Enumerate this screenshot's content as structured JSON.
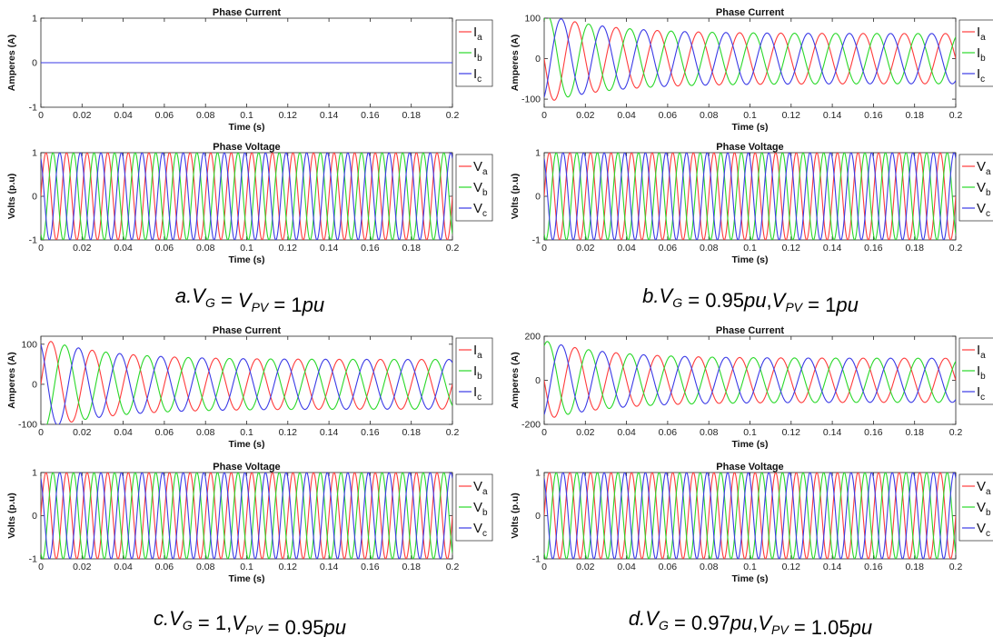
{
  "panels": [
    {
      "id": "a",
      "caption": {
        "prefix": "a.",
        "vg_value": "V_PV",
        "vpv_value": "1pu",
        "separator": " = "
      },
      "caption_text": "a.V_G = V_PV = 1pu"
    },
    {
      "id": "b",
      "caption_text": "b.V_G = 0.95pu,V_PV = 1pu"
    },
    {
      "id": "c",
      "caption_text": "c.V_G = 1,V_PV = 0.95pu"
    },
    {
      "id": "d",
      "caption_text": "d.V_G = 0.97pu,V_PV = 1.05pu"
    }
  ],
  "chart_data": [
    {
      "panel": "a",
      "type": "line",
      "title": "Phase Current",
      "xlabel": "Time (s)",
      "ylabel": "Amperes (A)",
      "xlim": [
        0,
        0.2
      ],
      "ylim": [
        -1,
        1
      ],
      "yticks": [
        -1,
        0,
        1
      ],
      "xticks": [
        0,
        0.02,
        0.04,
        0.06,
        0.08,
        0.1,
        0.12,
        0.14,
        0.16,
        0.18,
        0.2
      ],
      "grid": false,
      "legend": "outside-right",
      "frequency_hz": 50,
      "steady_amplitude": 0,
      "initial_amplitude": 0,
      "decay_time_s": 0.02,
      "series": [
        {
          "name": "I",
          "sub": "a",
          "color": "#ff3b3b",
          "phase_deg": 0
        },
        {
          "name": "I",
          "sub": "b",
          "color": "#29d829",
          "phase_deg": -120
        },
        {
          "name": "I",
          "sub": "c",
          "color": "#3a3ae6",
          "phase_deg": 120
        }
      ]
    },
    {
      "panel": "a",
      "type": "line",
      "title": "Phase Voltage",
      "xlabel": "Time (s)",
      "ylabel": "Volts (p.u)",
      "xlim": [
        0,
        0.2
      ],
      "ylim": [
        -1,
        1
      ],
      "yticks": [
        -1,
        0,
        1
      ],
      "xticks": [
        0,
        0.02,
        0.04,
        0.06,
        0.08,
        0.1,
        0.12,
        0.14,
        0.16,
        0.18,
        0.2
      ],
      "grid": false,
      "legend": "outside-right",
      "frequency_hz": 100,
      "amplitude": 1,
      "series": [
        {
          "name": "V",
          "sub": "a",
          "color": "#ff3b3b",
          "phase_deg": 0
        },
        {
          "name": "V",
          "sub": "b",
          "color": "#29d829",
          "phase_deg": -120
        },
        {
          "name": "V",
          "sub": "c",
          "color": "#3a3ae6",
          "phase_deg": 120
        }
      ]
    },
    {
      "panel": "b",
      "type": "line",
      "title": "Phase Current",
      "xlabel": "Time (s)",
      "ylabel": "Amperes (A)",
      "xlim": [
        0,
        0.2
      ],
      "ylim": [
        -120,
        100
      ],
      "yticks": [
        -100,
        0,
        100
      ],
      "xticks": [
        0,
        0.02,
        0.04,
        0.06,
        0.08,
        0.1,
        0.12,
        0.14,
        0.16,
        0.18,
        0.2
      ],
      "grid": false,
      "legend": "outside-right",
      "frequency_hz": 50,
      "steady_amplitude": 62,
      "initial_amplitude": 110,
      "decay_time_s": 0.03,
      "series": [
        {
          "name": "I",
          "sub": "a",
          "color": "#ff3b3b",
          "phase_deg": 180
        },
        {
          "name": "I",
          "sub": "b",
          "color": "#29d829",
          "phase_deg": 60
        },
        {
          "name": "I",
          "sub": "c",
          "color": "#3a3ae6",
          "phase_deg": -60
        }
      ]
    },
    {
      "panel": "b",
      "type": "line",
      "title": "Phase Voltage",
      "xlabel": "Time (s)",
      "ylabel": "Volts (p.u)",
      "xlim": [
        0,
        0.2
      ],
      "ylim": [
        -1,
        1
      ],
      "yticks": [
        -1,
        0,
        1
      ],
      "xticks": [
        0,
        0.02,
        0.04,
        0.06,
        0.08,
        0.1,
        0.12,
        0.14,
        0.16,
        0.18,
        0.2
      ],
      "grid": false,
      "legend": "outside-right",
      "frequency_hz": 100,
      "amplitude": 1,
      "series": [
        {
          "name": "V",
          "sub": "a",
          "color": "#ff3b3b",
          "phase_deg": 0
        },
        {
          "name": "V",
          "sub": "b",
          "color": "#29d829",
          "phase_deg": -120
        },
        {
          "name": "V",
          "sub": "c",
          "color": "#3a3ae6",
          "phase_deg": 120
        }
      ]
    },
    {
      "panel": "c",
      "type": "line",
      "title": "Phase Current",
      "xlabel": "Time (s)",
      "ylabel": "Amperes (A)",
      "xlim": [
        0,
        0.2
      ],
      "ylim": [
        -100,
        120
      ],
      "yticks": [
        -100,
        0,
        100
      ],
      "xticks": [
        0,
        0.02,
        0.04,
        0.06,
        0.08,
        0.1,
        0.12,
        0.14,
        0.16,
        0.18,
        0.2
      ],
      "grid": false,
      "legend": "outside-right",
      "frequency_hz": 50,
      "steady_amplitude": 62,
      "initial_amplitude": 115,
      "decay_time_s": 0.03,
      "series": [
        {
          "name": "I",
          "sub": "a",
          "color": "#ff3b3b",
          "phase_deg": 0
        },
        {
          "name": "I",
          "sub": "b",
          "color": "#29d829",
          "phase_deg": -120
        },
        {
          "name": "I",
          "sub": "c",
          "color": "#3a3ae6",
          "phase_deg": 120
        }
      ]
    },
    {
      "panel": "c",
      "type": "line",
      "title": "Phase Voltage",
      "xlabel": "Time (s)",
      "ylabel": "Volts (p.u)",
      "xlim": [
        0,
        0.2
      ],
      "ylim": [
        -1,
        1
      ],
      "yticks": [
        -1,
        0,
        1
      ],
      "xticks": [
        0,
        0.02,
        0.04,
        0.06,
        0.08,
        0.1,
        0.12,
        0.14,
        0.16,
        0.18,
        0.2
      ],
      "grid": false,
      "legend": "outside-right",
      "frequency_hz": 100,
      "amplitude": 1,
      "series": [
        {
          "name": "V",
          "sub": "a",
          "color": "#ff3b3b",
          "phase_deg": 0
        },
        {
          "name": "V",
          "sub": "b",
          "color": "#29d829",
          "phase_deg": -120
        },
        {
          "name": "V",
          "sub": "c",
          "color": "#3a3ae6",
          "phase_deg": 120
        }
      ]
    },
    {
      "panel": "d",
      "type": "line",
      "title": "Phase Current",
      "xlabel": "Time (s)",
      "ylabel": "Amperes (A)",
      "xlim": [
        0,
        0.2
      ],
      "ylim": [
        -200,
        200
      ],
      "yticks": [
        -200,
        0,
        200
      ],
      "xticks": [
        0,
        0.02,
        0.04,
        0.06,
        0.08,
        0.1,
        0.12,
        0.14,
        0.16,
        0.18,
        0.2
      ],
      "grid": false,
      "legend": "outside-right",
      "frequency_hz": 50,
      "steady_amplitude": 100,
      "initial_amplitude": 180,
      "decay_time_s": 0.03,
      "series": [
        {
          "name": "I",
          "sub": "a",
          "color": "#ff3b3b",
          "phase_deg": 180
        },
        {
          "name": "I",
          "sub": "b",
          "color": "#29d829",
          "phase_deg": 60
        },
        {
          "name": "I",
          "sub": "c",
          "color": "#3a3ae6",
          "phase_deg": -60
        }
      ]
    },
    {
      "panel": "d",
      "type": "line",
      "title": "Phase Voltage",
      "xlabel": "Time (s)",
      "ylabel": "Volts (p.u)",
      "xlim": [
        0,
        0.2
      ],
      "ylim": [
        -1,
        1
      ],
      "yticks": [
        -1,
        0,
        1
      ],
      "xticks": [
        0,
        0.02,
        0.04,
        0.06,
        0.08,
        0.1,
        0.12,
        0.14,
        0.16,
        0.18,
        0.2
      ],
      "grid": false,
      "legend": "outside-right",
      "frequency_hz": 100,
      "amplitude": 1,
      "series": [
        {
          "name": "V",
          "sub": "a",
          "color": "#ff3b3b",
          "phase_deg": 0
        },
        {
          "name": "V",
          "sub": "b",
          "color": "#29d829",
          "phase_deg": -120
        },
        {
          "name": "V",
          "sub": "c",
          "color": "#3a3ae6",
          "phase_deg": 120
        }
      ]
    }
  ],
  "captions": [
    {
      "panel": "a",
      "parts": [
        "a.",
        "V",
        "G",
        " = ",
        "V",
        "PV",
        " = ",
        "1",
        "pu"
      ]
    },
    {
      "panel": "b",
      "parts": [
        "b.",
        "V",
        "G",
        " = ",
        "0.95",
        "pu",
        ",",
        "V",
        "PV",
        " = ",
        "1",
        "pu"
      ]
    },
    {
      "panel": "c",
      "parts": [
        "c.",
        "V",
        "G",
        " = ",
        "1",
        ",",
        "V",
        "PV",
        " = ",
        "0.95",
        "pu"
      ]
    },
    {
      "panel": "d",
      "parts": [
        "d.",
        "V",
        "G",
        " = ",
        "0.97",
        "pu",
        ",",
        "V",
        "PV",
        " = ",
        "1.05",
        "pu"
      ]
    }
  ]
}
